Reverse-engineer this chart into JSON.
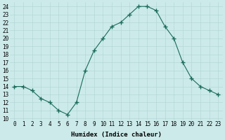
{
  "x": [
    0,
    1,
    2,
    3,
    4,
    5,
    6,
    7,
    8,
    9,
    10,
    11,
    12,
    13,
    14,
    15,
    16,
    17,
    18,
    19,
    20,
    21,
    22,
    23
  ],
  "y": [
    14,
    14,
    13.5,
    12.5,
    12,
    11,
    10.5,
    12,
    16,
    18.5,
    20,
    21.5,
    22,
    23,
    24,
    24,
    23.5,
    21.5,
    20,
    17,
    15,
    14,
    13.5,
    13
  ],
  "line_color": "#1a6b5a",
  "marker": "+",
  "marker_size": 4,
  "bg_color": "#cceaea",
  "grid_color": "#b0d4d4",
  "xlabel": "Humidex (Indice chaleur)",
  "ylabel_ticks": [
    10,
    11,
    12,
    13,
    14,
    15,
    16,
    17,
    18,
    19,
    20,
    21,
    22,
    23,
    24
  ],
  "xlim": [
    -0.5,
    23.5
  ],
  "ylim": [
    9.8,
    24.5
  ],
  "xlabel_fontsize": 6.5,
  "tick_fontsize": 5.5,
  "lw": 0.8
}
